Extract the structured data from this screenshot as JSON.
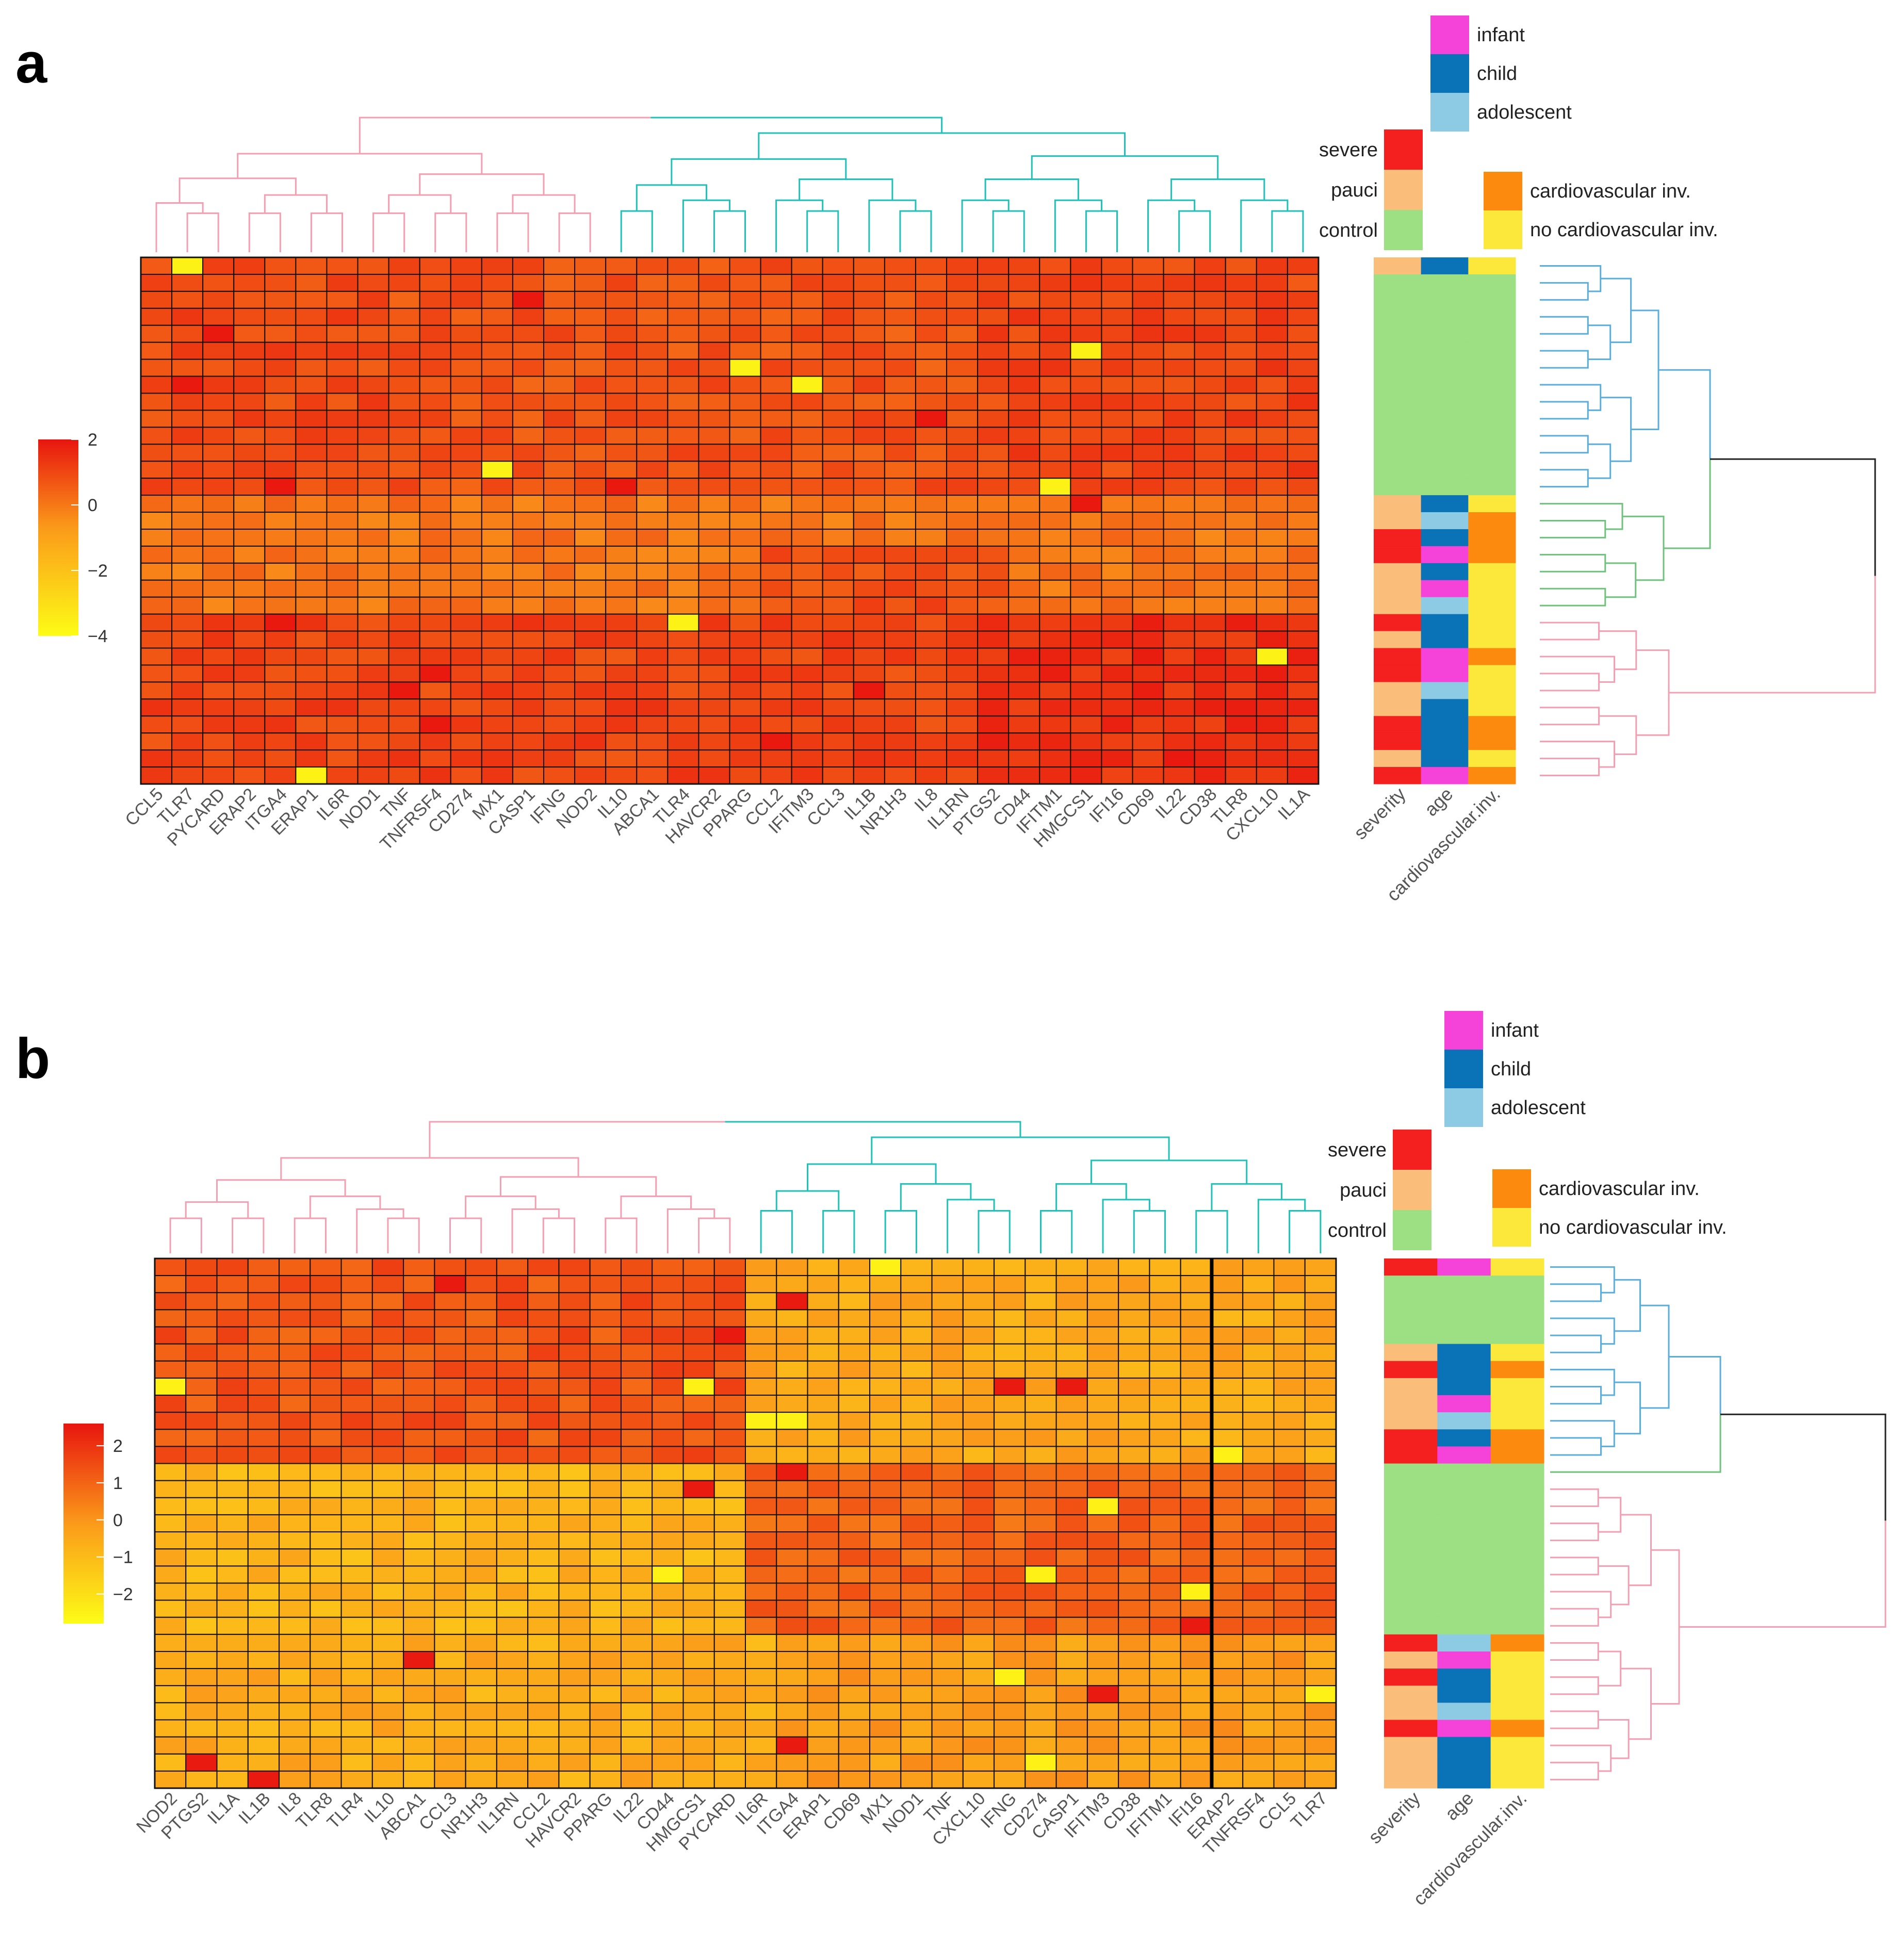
{
  "colors": {
    "severe": "#f41f1f",
    "pauci": "#fbbd7a",
    "control": "#9ddf83",
    "infant": "#f542d8",
    "child": "#0a72b6",
    "adolescent": "#8ccbe3",
    "cardiovascular": "#fb8a0e",
    "no_cardiovascular": "#fbe83a",
    "dendro_left": "#f49fb1",
    "dendro_right": "#1fc1b8",
    "dendro_blue": "#5aaede",
    "dendro_green": "#6ec27b",
    "dendro_black": "#222222",
    "scale_high": "#e8150f",
    "scale_mid": "#fb9a1a",
    "scale_low": "#fdfc16"
  },
  "legend": {
    "age": [
      "infant",
      "child",
      "adolescent"
    ],
    "severity": [
      "severe",
      "pauci",
      "control"
    ],
    "cardio": [
      "cardiovascular inv.",
      "no cardiovascular inv."
    ]
  },
  "annotation_columns": [
    "severity",
    "age",
    "cardiovascular.inv."
  ],
  "chart_data": [
    {
      "panel": "a",
      "type": "heatmap",
      "columns": [
        "CCL5",
        "TLR7",
        "PYCARD",
        "ERAP2",
        "ITGA4",
        "ERAP1",
        "IL6R",
        "NOD1",
        "TNF",
        "TNFRSF4",
        "CD274",
        "MX1",
        "CASP1",
        "IFNG",
        "NOD2",
        "IL10",
        "ABCA1",
        "TLR4",
        "HAVCR2",
        "PPARG",
        "CCL2",
        "IFITM3",
        "CCL3",
        "IL1B",
        "NR1H3",
        "IL8",
        "IL1RN",
        "PTGS2",
        "CD44",
        "IFITM1",
        "HMGCS1",
        "IFI16",
        "CD69",
        "IL22",
        "CD38",
        "TLR8",
        "CXCL10",
        "IL1A"
      ],
      "n_rows": 31,
      "color_scale": {
        "min": -4,
        "max": 2,
        "ticks": [
          2,
          0,
          -2,
          -4
        ]
      },
      "row_annotations": {
        "severity": [
          "pauci",
          "control",
          "control",
          "control",
          "control",
          "control",
          "control",
          "control",
          "control",
          "control",
          "control",
          "control",
          "control",
          "control",
          "pauci",
          "pauci",
          "severe",
          "severe",
          "pauci",
          "pauci",
          "pauci",
          "severe",
          "pauci",
          "severe",
          "severe",
          "pauci",
          "pauci",
          "severe",
          "severe",
          "pauci",
          "severe"
        ],
        "age": [
          "child",
          "control",
          "control",
          "control",
          "control",
          "control",
          "control",
          "control",
          "control",
          "control",
          "control",
          "control",
          "control",
          "control",
          "child",
          "adolescent",
          "child",
          "infant",
          "child",
          "infant",
          "adolescent",
          "child",
          "child",
          "infant",
          "infant",
          "adolescent",
          "child",
          "child",
          "child",
          "child",
          "infant"
        ],
        "cardio": [
          "no_cardiovascular",
          "control",
          "control",
          "control",
          "control",
          "control",
          "control",
          "control",
          "control",
          "control",
          "control",
          "control",
          "control",
          "control",
          "no_cardiovascular",
          "cardiovascular",
          "cardiovascular",
          "cardiovascular",
          "no_cardiovascular",
          "no_cardiovascular",
          "no_cardiovascular",
          "no_cardiovascular",
          "no_cardiovascular",
          "cardiovascular",
          "no_cardiovascular",
          "no_cardiovascular",
          "no_cardiovascular",
          "cardiovascular",
          "cardiovascular",
          "no_cardiovascular",
          "cardiovascular"
        ]
      },
      "row_cluster_groups": [
        {
          "color": "blue",
          "rows": 14
        },
        {
          "color": "green",
          "rows": 7
        },
        {
          "color": "pink",
          "rows": 10
        }
      ],
      "col_cluster_groups": [
        {
          "color": "pink",
          "cols": 15
        },
        {
          "color": "teal",
          "cols": 23
        }
      ]
    },
    {
      "panel": "b",
      "type": "heatmap",
      "columns": [
        "NOD2",
        "PTGS2",
        "IL1A",
        "IL1B",
        "IL8",
        "TLR8",
        "TLR4",
        "IL10",
        "ABCA1",
        "CCL3",
        "NR1H3",
        "IL1RN",
        "CCL2",
        "HAVCR2",
        "PPARG",
        "IL22",
        "CD44",
        "HMGCS1",
        "PYCARD",
        "IL6R",
        "ITGA4",
        "ERAP1",
        "CD69",
        "MX1",
        "NOD1",
        "TNF",
        "CXCL10",
        "IFNG",
        "CD274",
        "CASP1",
        "IFITM3",
        "CD38",
        "IFITM1",
        "IFI16",
        "ERAP2",
        "TNFRSF4",
        "CCL5",
        "TLR7"
      ],
      "n_rows": 31,
      "color_scale": {
        "min": -2.8,
        "max": 2.6,
        "ticks": [
          2,
          1,
          0,
          -1,
          -2
        ]
      },
      "row_annotations": {
        "severity": [
          "severe",
          "control",
          "control",
          "control",
          "control",
          "pauci",
          "severe",
          "pauci",
          "pauci",
          "pauci",
          "severe",
          "severe",
          "control",
          "control",
          "control",
          "control",
          "control",
          "control",
          "control",
          "control",
          "control",
          "control",
          "severe",
          "pauci",
          "severe",
          "pauci",
          "pauci",
          "severe",
          "pauci",
          "pauci",
          "pauci"
        ],
        "age": [
          "infant",
          "control",
          "control",
          "control",
          "control",
          "child",
          "child",
          "child",
          "infant",
          "adolescent",
          "child",
          "infant",
          "control",
          "control",
          "control",
          "control",
          "control",
          "control",
          "control",
          "control",
          "control",
          "control",
          "adolescent",
          "infant",
          "child",
          "child",
          "adolescent",
          "infant",
          "child",
          "child",
          "child"
        ],
        "cardio": [
          "no_cardiovascular",
          "control",
          "control",
          "control",
          "control",
          "no_cardiovascular",
          "cardiovascular",
          "no_cardiovascular",
          "no_cardiovascular",
          "no_cardiovascular",
          "cardiovascular",
          "cardiovascular",
          "control",
          "control",
          "control",
          "control",
          "control",
          "control",
          "control",
          "control",
          "control",
          "control",
          "cardiovascular",
          "no_cardiovascular",
          "no_cardiovascular",
          "no_cardiovascular",
          "no_cardiovascular",
          "cardiovascular",
          "no_cardiovascular",
          "no_cardiovascular",
          "no_cardiovascular"
        ]
      },
      "row_cluster_groups": [
        {
          "color": "blue",
          "rows": 12
        },
        {
          "color": "green",
          "rows": 1
        },
        {
          "color": "pink",
          "rows": 18
        }
      ],
      "col_cluster_groups": [
        {
          "color": "pink",
          "cols": 19
        },
        {
          "color": "teal",
          "cols": 19
        }
      ]
    }
  ]
}
